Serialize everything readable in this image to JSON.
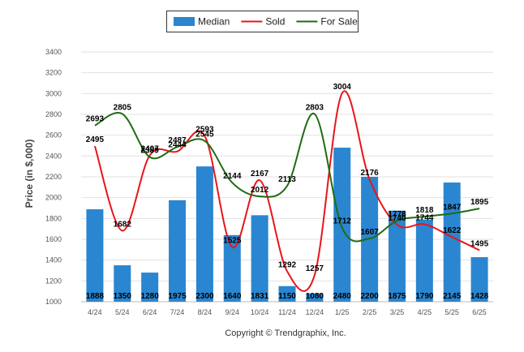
{
  "chart_data": {
    "type": "bar",
    "categories": [
      "4/24",
      "5/24",
      "6/24",
      "7/24",
      "8/24",
      "9/24",
      "10/24",
      "11/24",
      "12/24",
      "1/25",
      "2/25",
      "3/25",
      "4/25",
      "5/25",
      "6/25"
    ],
    "series": [
      {
        "name": "Median",
        "kind": "bar",
        "color": "#2a86d1",
        "values": [
          1888,
          1350,
          1280,
          1975,
          2300,
          1640,
          1831,
          1150,
          1080,
          2480,
          2200,
          1875,
          1790,
          2145,
          1428
        ]
      },
      {
        "name": "Sold",
        "kind": "line",
        "color": "#e8141b",
        "values": [
          2495,
          1682,
          2407,
          2444,
          2593,
          1525,
          2167,
          1292,
          1257,
          3004,
          2176,
          1740,
          1744,
          1622,
          1495
        ]
      },
      {
        "name": "For Sale",
        "kind": "line",
        "color": "#1f6b12",
        "values": [
          2693,
          2805,
          2389,
          2487,
          2545,
          2144,
          2012,
          2113,
          2803,
          1712,
          1607,
          1778,
          1818,
          1847,
          1895
        ]
      }
    ],
    "ylabel": "Price (in $,000)",
    "xlabel": "",
    "ylim": [
      1000,
      3400
    ],
    "yticks": [
      1000,
      1200,
      1400,
      1600,
      1800,
      2000,
      2200,
      2400,
      2600,
      2800,
      3000,
      3200,
      3400
    ],
    "grid": true,
    "legend_position": "top-center"
  },
  "footer": {
    "copyright": "Copyright © Trendgraphix, Inc."
  }
}
